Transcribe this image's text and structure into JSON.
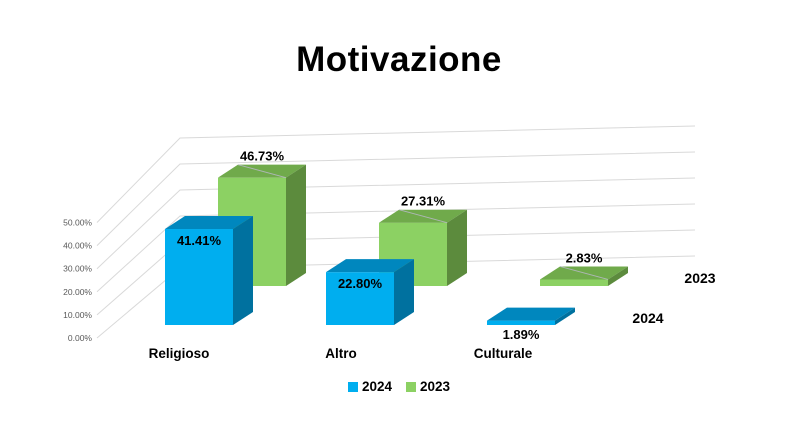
{
  "chart_data": {
    "type": "bar",
    "variant": "3d-column",
    "title": "Motivazione",
    "categories": [
      "Religioso",
      "Altro",
      "Culturale"
    ],
    "series": [
      {
        "name": "2024",
        "color": "#00AEEF",
        "values": [
          41.41,
          22.8,
          1.89
        ]
      },
      {
        "name": "2023",
        "color": "#8CD163",
        "values": [
          46.73,
          27.31,
          2.83
        ]
      }
    ],
    "value_labels": [
      [
        "41.41%",
        "22.80%",
        "1.89%"
      ],
      [
        "46.73%",
        "27.31%",
        "2.83%"
      ]
    ],
    "y_ticks": [
      "0.00%",
      "10.00%",
      "20.00%",
      "30.00%",
      "40.00%",
      "50.00%"
    ],
    "ylim": [
      0,
      50
    ],
    "xlabel": "",
    "ylabel": "",
    "grid": true,
    "legend_position": "bottom",
    "legend": [
      {
        "label": "2024",
        "color": "#00AEEF"
      },
      {
        "label": "2023",
        "color": "#8CD163"
      }
    ],
    "depth_axis_labels": [
      "2024",
      "2023"
    ],
    "colors": {
      "blue_front": "#00AEEF",
      "blue_top": "#0087BE",
      "blue_side": "#00719F",
      "green_front": "#8CD163",
      "green_top": "#70AA4B",
      "green_side": "#5C8B3D",
      "gridline": "#D9D9D9",
      "axis_text": "#595959",
      "label_text": "#000000"
    }
  }
}
